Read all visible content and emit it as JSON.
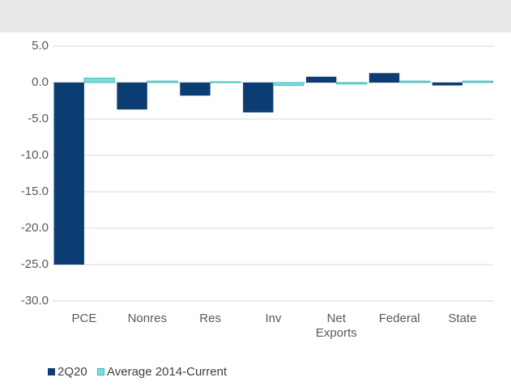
{
  "chart_data": {
    "type": "bar",
    "categories": [
      "PCE",
      "Nonres",
      "Res",
      "Inv",
      "Net Exports",
      "Federal",
      "State"
    ],
    "series": [
      {
        "name": "2Q20",
        "color": "#0b3d73",
        "values": [
          -25.0,
          -3.7,
          -1.8,
          -4.1,
          0.8,
          1.3,
          -0.4
        ]
      },
      {
        "name": "Average 2014-Current",
        "color": "#7fdada",
        "values": [
          0.6,
          0.2,
          0.1,
          -0.4,
          -0.2,
          0.2,
          0.2
        ]
      }
    ],
    "ylim": [
      -30,
      5
    ],
    "yticks": [
      {
        "value": 5,
        "label": "5.0"
      },
      {
        "value": 0,
        "label": "0.0"
      },
      {
        "value": -5,
        "label": "-5.0"
      },
      {
        "value": -10,
        "label": "-10.0"
      },
      {
        "value": -15,
        "label": "-15.0"
      },
      {
        "value": -20,
        "label": "-20.0"
      },
      {
        "value": -25,
        "label": "-25.0"
      },
      {
        "value": -30,
        "label": "-30.0"
      }
    ],
    "grid": true,
    "legend": "bottom"
  }
}
